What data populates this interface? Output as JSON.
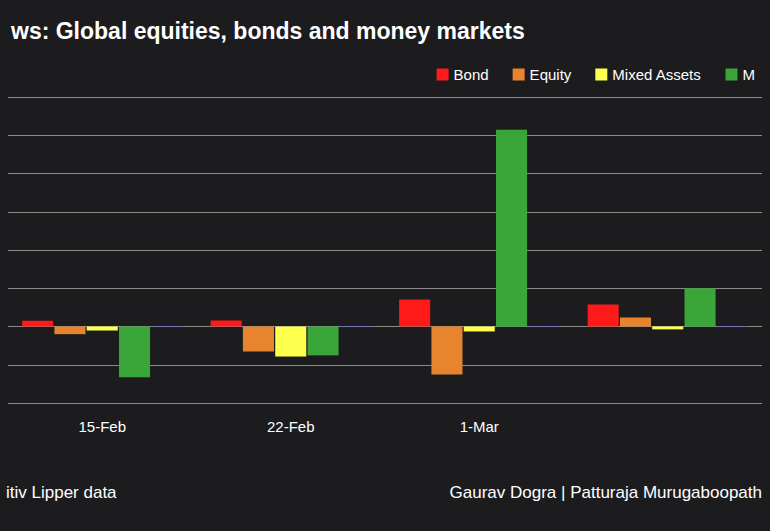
{
  "chart_data": {
    "type": "bar",
    "title": "ws: Global equities, bonds and money markets",
    "annotations": [
      "itiv Lipper data",
      "Gaurav Dogra | Patturaja Murugaboopath"
    ],
    "categories": [
      "15-Feb",
      "22-Feb",
      "1-Mar",
      null
    ],
    "series": [
      {
        "name": "Bond",
        "color": "#ff1a1a",
        "values": [
          3,
          3.1,
          14.1,
          11.5
        ]
      },
      {
        "name": "Equity",
        "color": "#e8832e",
        "values": [
          -4,
          -13.1,
          -25.1,
          4.7
        ]
      },
      {
        "name": "Mixed Assets",
        "color": "#ffff4d",
        "values": [
          -2.1,
          -15.7,
          -2.6,
          -1.5
        ]
      },
      {
        "name": "M",
        "color": "#3aa63a",
        "values": [
          -26.6,
          -15.1,
          102.9,
          20
        ]
      },
      {
        "color": "#5b5bd6",
        "values": [
          -0.3,
          -0.3,
          -0.3,
          -0.3
        ]
      }
    ],
    "ylim": [
      -40,
      120
    ],
    "yticks": [
      -40,
      -20,
      0,
      20,
      40,
      60,
      80,
      100,
      120
    ],
    "grid": true,
    "legend": "top-right",
    "tick_labels": "x"
  }
}
